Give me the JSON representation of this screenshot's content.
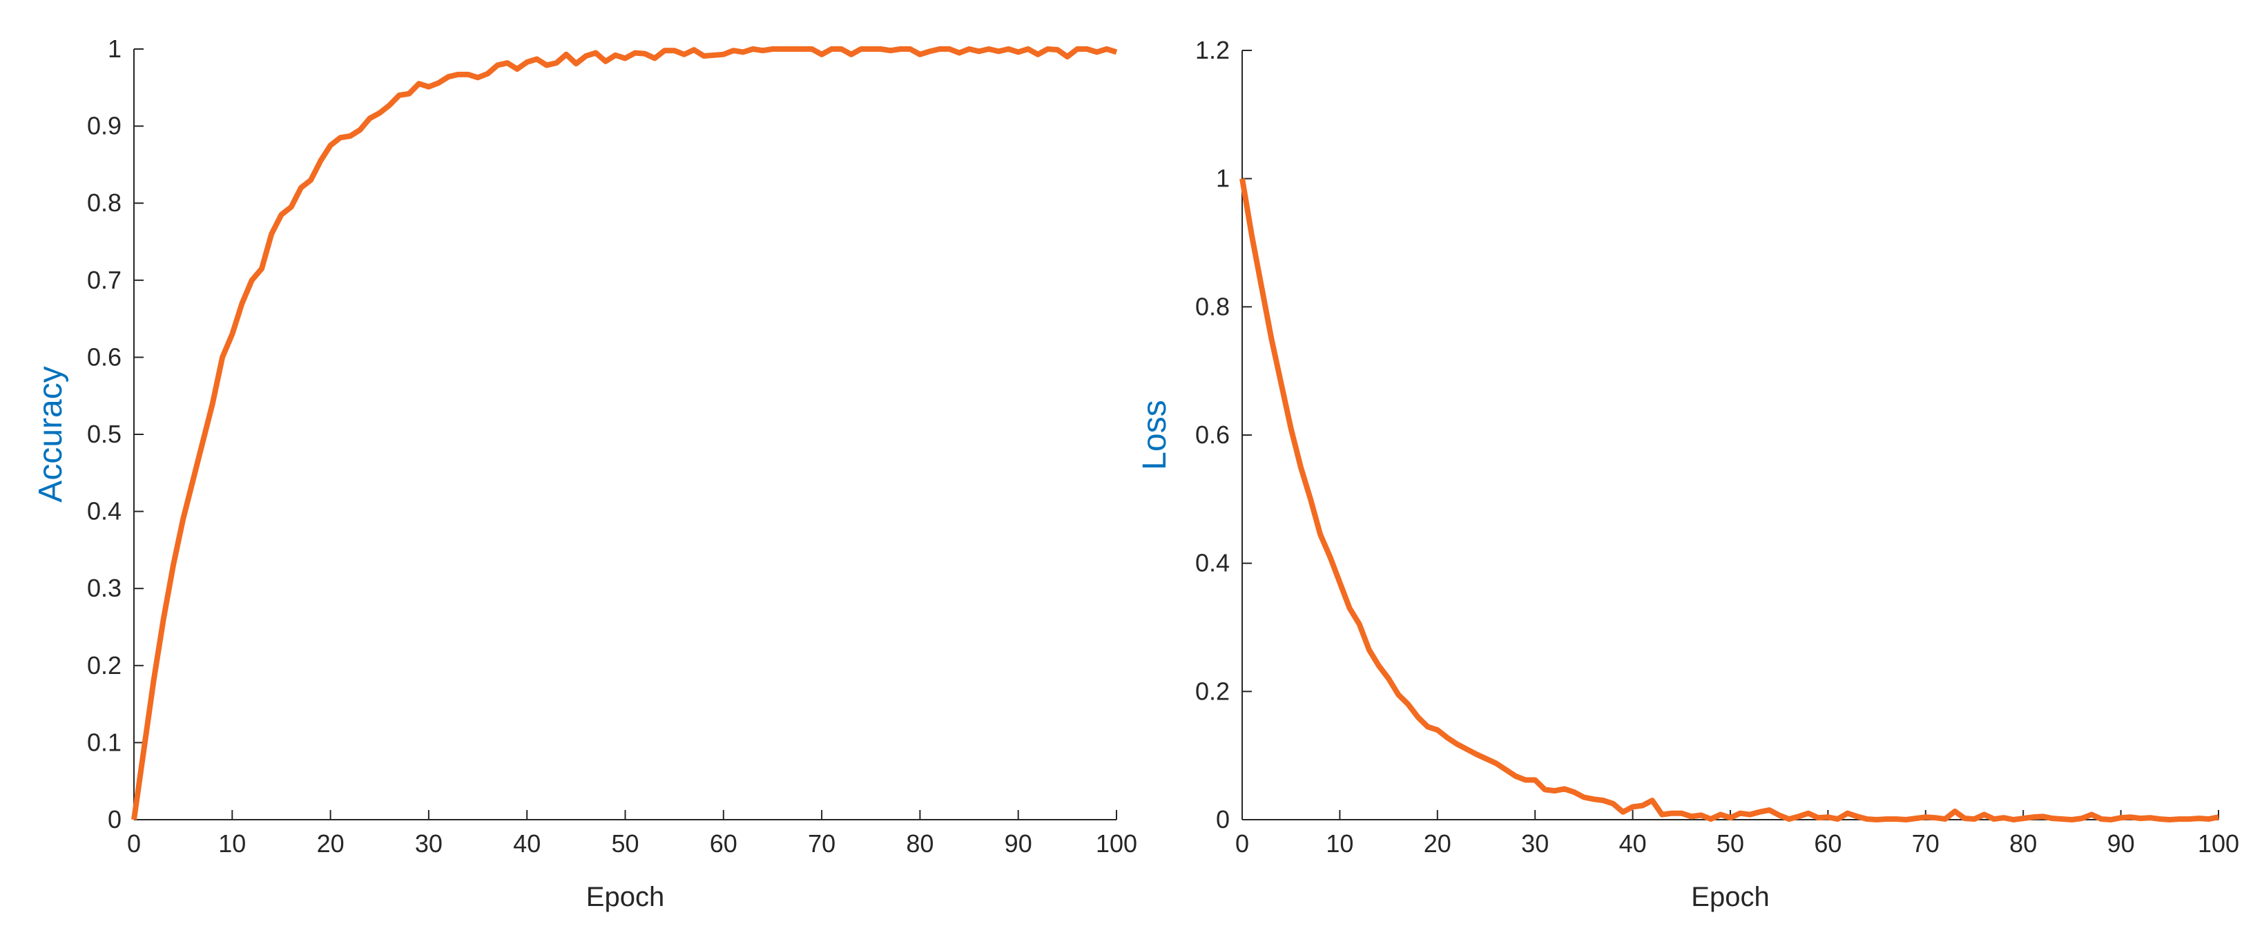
{
  "chart_data": [
    {
      "type": "line",
      "xlabel": "Epoch",
      "ylabel": "Accuracy",
      "color": "#f26b21",
      "ylabel_color": "#0072bd",
      "x": [
        0,
        1,
        2,
        3,
        4,
        5,
        6,
        7,
        8,
        9,
        10,
        11,
        12,
        13,
        14,
        15,
        16,
        17,
        18,
        19,
        20,
        21,
        22,
        23,
        24,
        25,
        26,
        27,
        28,
        29,
        30,
        31,
        32,
        33,
        34,
        35,
        36,
        37,
        38,
        39,
        40,
        41,
        42,
        43,
        44,
        45,
        46,
        47,
        48,
        49,
        50,
        51,
        52,
        53,
        54,
        55,
        56,
        57,
        58,
        59,
        60,
        61,
        62,
        63,
        64,
        65,
        66,
        67,
        68,
        69,
        70,
        71,
        72,
        73,
        74,
        75,
        76,
        77,
        78,
        79,
        80,
        81,
        82,
        83,
        84,
        85,
        86,
        87,
        88,
        89,
        90,
        91,
        92,
        93,
        94,
        95,
        96,
        97,
        98,
        99,
        100
      ],
      "values": [
        0,
        0.09,
        0.18,
        0.26,
        0.33,
        0.39,
        0.44,
        0.49,
        0.54,
        0.6,
        0.63,
        0.67,
        0.7,
        0.715,
        0.76,
        0.785,
        0.795,
        0.82,
        0.83,
        0.855,
        0.875,
        0.885,
        0.887,
        0.895,
        0.91,
        0.917,
        0.927,
        0.94,
        0.942,
        0.955,
        0.951,
        0.956,
        0.964,
        0.967,
        0.967,
        0.963,
        0.968,
        0.979,
        0.982,
        0.974,
        0.983,
        0.987,
        0.979,
        0.982,
        0.993,
        0.981,
        0.991,
        0.995,
        0.984,
        0.992,
        0.988,
        0.995,
        0.994,
        0.988,
        0.998,
        0.998,
        0.993,
        0.999,
        0.991,
        0.992,
        0.993,
        0.998,
        0.996,
        1,
        0.998,
        1,
        1,
        1,
        1,
        1,
        0.993,
        1,
        1,
        0.993,
        1,
        1,
        1,
        0.998,
        1,
        1,
        0.993,
        0.997,
        1,
        1,
        0.995,
        1,
        0.997,
        1,
        0.997,
        1,
        0.996,
        1,
        0.993,
        1,
        0.999,
        0.99,
        1,
        1,
        0.996,
        1,
        0.996
      ],
      "xlim": [
        0,
        100
      ],
      "xticks": [
        0,
        10,
        20,
        30,
        40,
        50,
        60,
        70,
        80,
        90,
        100
      ],
      "ylim": [
        0,
        1
      ],
      "yticks": [
        0,
        0.1,
        0.2,
        0.3,
        0.4,
        0.5,
        0.6,
        0.7,
        0.8,
        0.9,
        1
      ]
    },
    {
      "type": "line",
      "xlabel": "Epoch",
      "ylabel": "Loss",
      "color": "#f26b21",
      "ylabel_color": "#0072bd",
      "x": [
        0,
        1,
        2,
        3,
        4,
        5,
        6,
        7,
        8,
        9,
        10,
        11,
        12,
        13,
        14,
        15,
        16,
        17,
        18,
        19,
        20,
        21,
        22,
        23,
        24,
        25,
        26,
        27,
        28,
        29,
        30,
        31,
        32,
        33,
        34,
        35,
        36,
        37,
        38,
        39,
        40,
        41,
        42,
        43,
        44,
        45,
        46,
        47,
        48,
        49,
        50,
        51,
        52,
        53,
        54,
        55,
        56,
        57,
        58,
        59,
        60,
        61,
        62,
        63,
        64,
        65,
        66,
        67,
        68,
        69,
        70,
        71,
        72,
        73,
        74,
        75,
        76,
        77,
        78,
        79,
        80,
        81,
        82,
        83,
        84,
        85,
        86,
        87,
        88,
        89,
        90,
        91,
        92,
        93,
        94,
        95,
        96,
        97,
        98,
        99,
        100
      ],
      "values": [
        1.0,
        0.91,
        0.83,
        0.75,
        0.68,
        0.61,
        0.55,
        0.5,
        0.445,
        0.41,
        0.37,
        0.33,
        0.305,
        0.265,
        0.24,
        0.22,
        0.195,
        0.18,
        0.16,
        0.145,
        0.14,
        0.128,
        0.118,
        0.11,
        0.102,
        0.095,
        0.088,
        0.078,
        0.068,
        0.062,
        0.062,
        0.047,
        0.045,
        0.048,
        0.043,
        0.035,
        0.032,
        0.03,
        0.025,
        0.012,
        0.02,
        0.022,
        0.03,
        0.008,
        0.01,
        0.01,
        0.005,
        0.007,
        0.001,
        0.008,
        0.003,
        0.01,
        0.008,
        0.012,
        0.015,
        0.007,
        0.001,
        0.005,
        0.01,
        0.003,
        0.004,
        0.001,
        0.01,
        0.005,
        0.001,
        0,
        0.001,
        0.001,
        0,
        0.002,
        0.004,
        0.003,
        0.001,
        0.013,
        0.002,
        0.001,
        0.008,
        0.001,
        0.003,
        0,
        0.002,
        0.004,
        0.005,
        0.002,
        0.001,
        0,
        0.002,
        0.008,
        0.001,
        0,
        0.003,
        0.004,
        0.002,
        0.003,
        0.001,
        0,
        0.001,
        0.001,
        0.002,
        0.001,
        0.004
      ],
      "xlim": [
        0,
        100
      ],
      "xticks": [
        0,
        10,
        20,
        30,
        40,
        50,
        60,
        70,
        80,
        90,
        100
      ],
      "ylim": [
        0,
        1.2
      ],
      "yticks": [
        0,
        0.2,
        0.4,
        0.6,
        0.8,
        1,
        1.2
      ]
    }
  ]
}
